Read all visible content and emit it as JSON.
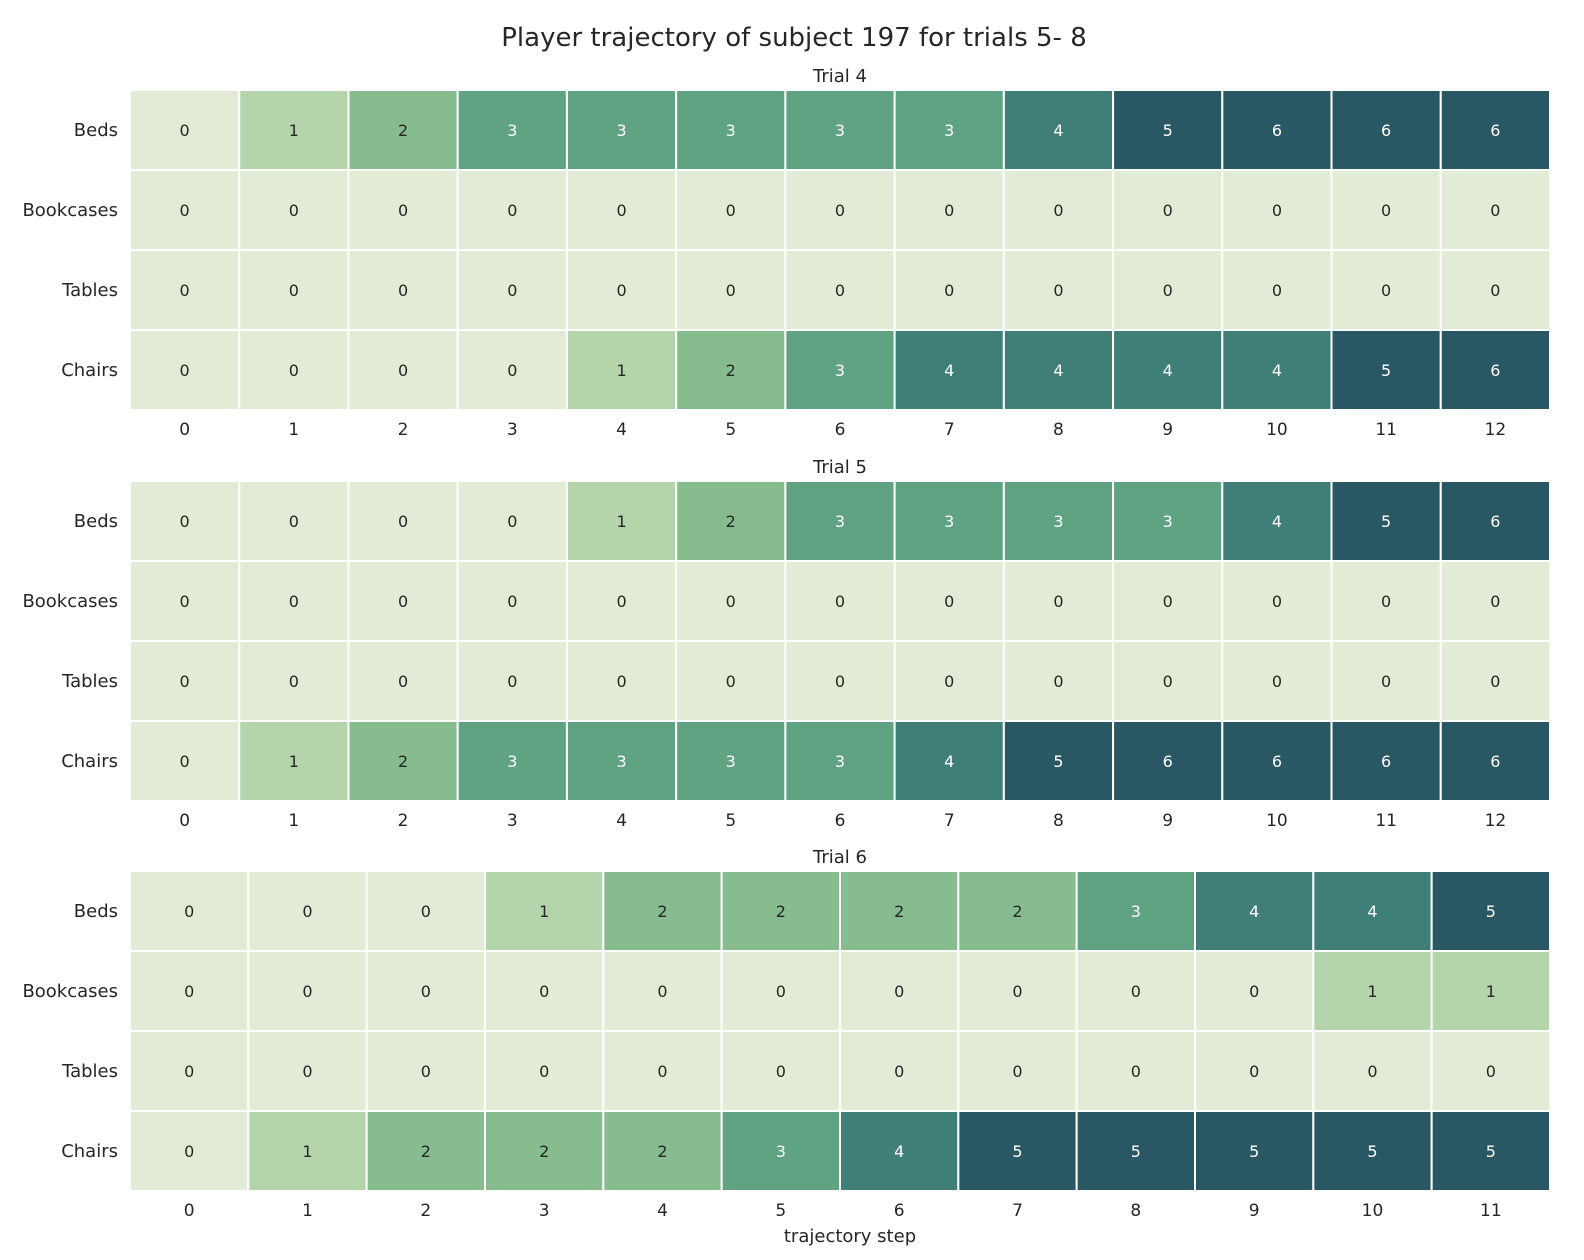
{
  "figure": {
    "title": "Player trajectory of subject 197 for trials 5- 8",
    "xlabel": "trajectory step"
  },
  "colorscale": [
    "#e2ebd6",
    "#b4d5ac",
    "#86bc8e",
    "#5fa383",
    "#3f7f78",
    "#295864"
  ],
  "chart_data": [
    {
      "type": "heatmap",
      "title": "Trial 4",
      "rows": [
        "Beds",
        "Bookcases",
        "Tables",
        "Chairs"
      ],
      "x": [
        0,
        1,
        2,
        3,
        4,
        5,
        6,
        7,
        8,
        9,
        10,
        11,
        12
      ],
      "values": [
        [
          0,
          1,
          2,
          3,
          3,
          3,
          3,
          3,
          4,
          5,
          6,
          6,
          6
        ],
        [
          0,
          0,
          0,
          0,
          0,
          0,
          0,
          0,
          0,
          0,
          0,
          0,
          0
        ],
        [
          0,
          0,
          0,
          0,
          0,
          0,
          0,
          0,
          0,
          0,
          0,
          0,
          0
        ],
        [
          0,
          0,
          0,
          0,
          1,
          2,
          3,
          4,
          4,
          4,
          4,
          5,
          6
        ]
      ]
    },
    {
      "type": "heatmap",
      "title": "Trial 5",
      "rows": [
        "Beds",
        "Bookcases",
        "Tables",
        "Chairs"
      ],
      "x": [
        0,
        1,
        2,
        3,
        4,
        5,
        6,
        7,
        8,
        9,
        10,
        11,
        12
      ],
      "values": [
        [
          0,
          0,
          0,
          0,
          1,
          2,
          3,
          3,
          3,
          3,
          4,
          5,
          6
        ],
        [
          0,
          0,
          0,
          0,
          0,
          0,
          0,
          0,
          0,
          0,
          0,
          0,
          0
        ],
        [
          0,
          0,
          0,
          0,
          0,
          0,
          0,
          0,
          0,
          0,
          0,
          0,
          0
        ],
        [
          0,
          1,
          2,
          3,
          3,
          3,
          3,
          4,
          5,
          6,
          6,
          6,
          6
        ]
      ]
    },
    {
      "type": "heatmap",
      "title": "Trial 6",
      "rows": [
        "Beds",
        "Bookcases",
        "Tables",
        "Chairs"
      ],
      "x": [
        0,
        1,
        2,
        3,
        4,
        5,
        6,
        7,
        8,
        9,
        10,
        11
      ],
      "values": [
        [
          0,
          0,
          0,
          1,
          2,
          2,
          2,
          2,
          3,
          4,
          4,
          5
        ],
        [
          0,
          0,
          0,
          0,
          0,
          0,
          0,
          0,
          0,
          0,
          1,
          1
        ],
        [
          0,
          0,
          0,
          0,
          0,
          0,
          0,
          0,
          0,
          0,
          0,
          0
        ],
        [
          0,
          1,
          2,
          2,
          2,
          3,
          4,
          5,
          5,
          5,
          5,
          5
        ]
      ]
    }
  ]
}
